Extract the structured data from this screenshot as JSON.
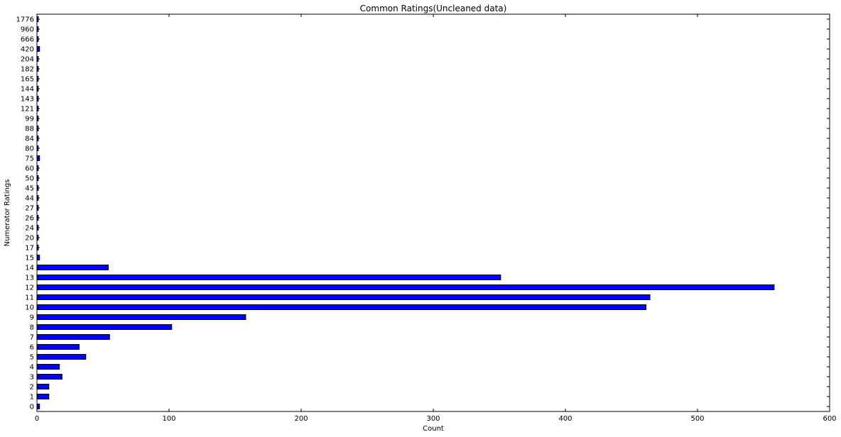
{
  "chart_data": {
    "type": "bar",
    "orientation": "horizontal",
    "title": "Common Ratings(Uncleaned data)",
    "xlabel": "Count",
    "ylabel": "Numerator Ratings",
    "xlim": [
      0,
      600
    ],
    "xticks": [
      0,
      100,
      200,
      300,
      400,
      500,
      600
    ],
    "categories": [
      "0",
      "1",
      "2",
      "3",
      "4",
      "5",
      "6",
      "7",
      "8",
      "9",
      "10",
      "11",
      "12",
      "13",
      "14",
      "15",
      "17",
      "20",
      "24",
      "26",
      "27",
      "44",
      "45",
      "50",
      "60",
      "75",
      "80",
      "84",
      "88",
      "99",
      "121",
      "143",
      "144",
      "165",
      "182",
      "204",
      "420",
      "666",
      "960",
      "1776"
    ],
    "values": [
      2,
      9,
      9,
      19,
      17,
      37,
      32,
      55,
      102,
      158,
      461,
      464,
      558,
      351,
      54,
      2,
      1,
      1,
      1,
      1,
      1,
      1,
      1,
      1,
      1,
      2,
      1,
      1,
      1,
      1,
      1,
      1,
      1,
      1,
      1,
      1,
      2,
      1,
      1,
      1
    ],
    "bar_color": "#0000ff",
    "edge_color": "#000000",
    "grid": false,
    "legend": "none"
  }
}
